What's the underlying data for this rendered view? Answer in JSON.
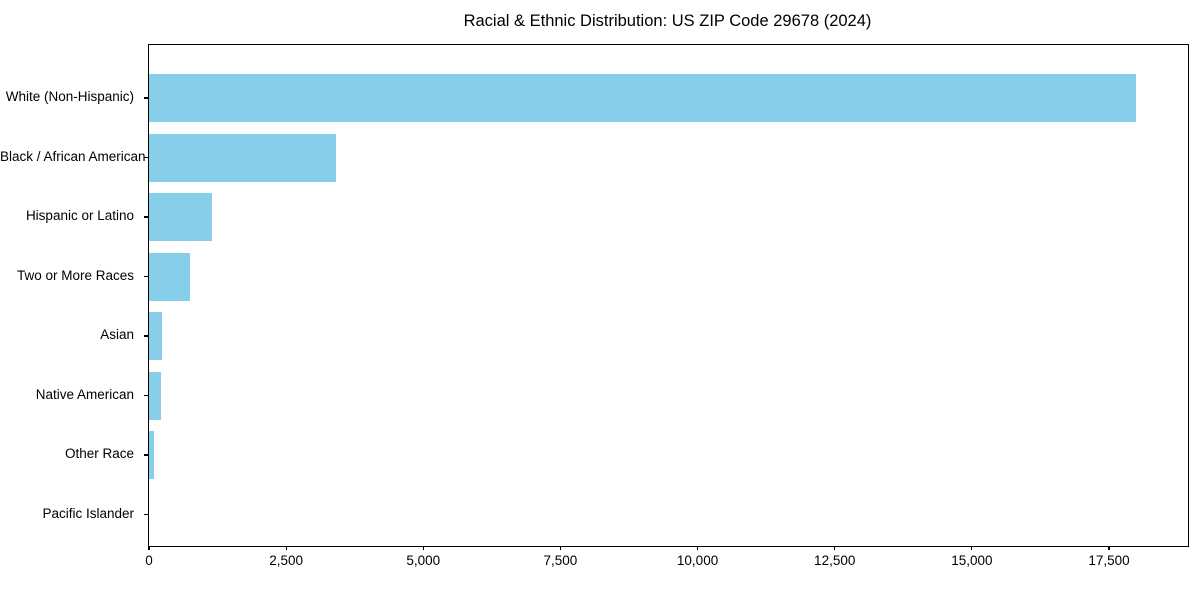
{
  "chart_data": {
    "type": "bar",
    "orientation": "horizontal",
    "title": "Racial & Ethnic Distribution: US ZIP Code 29678 (2024)",
    "categories": [
      "White (Non-Hispanic)",
      "Black / African American",
      "Hispanic or Latino",
      "Two or More Races",
      "Asian",
      "Native American",
      "Other Race",
      "Pacific Islander"
    ],
    "values": [
      18000,
      3400,
      1150,
      750,
      245,
      225,
      85,
      0
    ],
    "xlabel": "",
    "ylabel": "",
    "xlim": [
      0,
      18940
    ],
    "xticks": [
      0,
      2500,
      5000,
      7500,
      10000,
      12500,
      15000,
      17500
    ],
    "xtick_labels": [
      "0",
      "2,500",
      "5,000",
      "7,500",
      "10,000",
      "12,500",
      "15,000",
      "17,500"
    ],
    "bar_color": "#87CEEB",
    "axis_color": "#000000",
    "background_color": "#ffffff",
    "grid": false,
    "legend": false
  }
}
